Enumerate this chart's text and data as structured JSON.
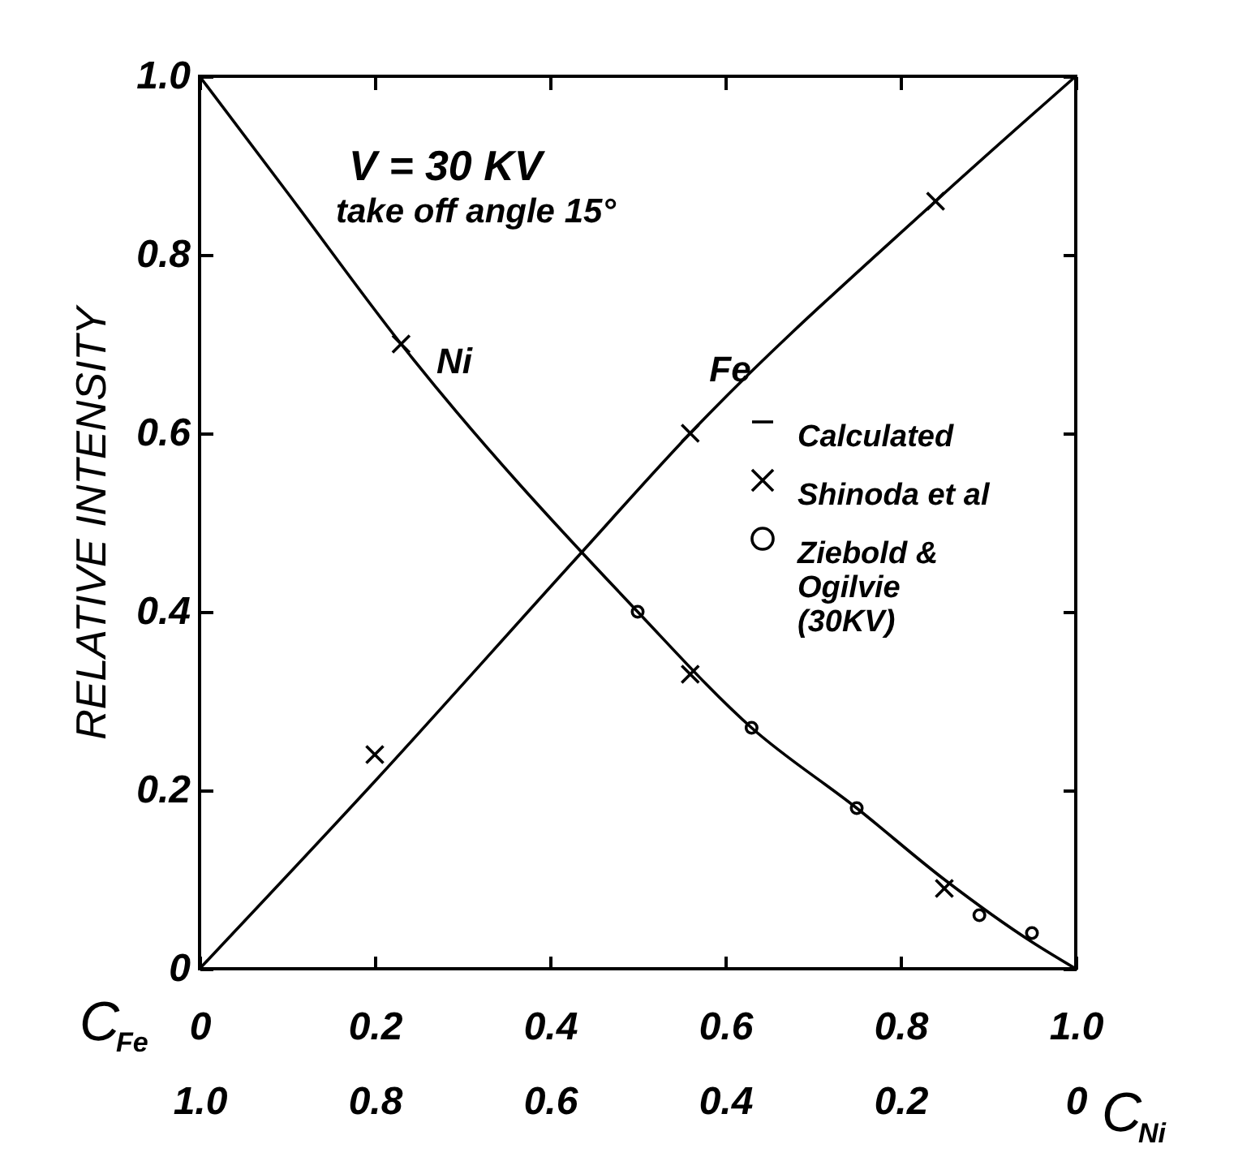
{
  "chart_data": {
    "type": "line",
    "ylabel": "RELATIVE INTENSITY",
    "xlabel": "C$_{Fe}$",
    "x2label": "C$_{Ni}$",
    "xlim": [
      0,
      1
    ],
    "xticks": [
      0,
      0.2,
      0.4,
      0.6,
      0.8,
      {
        "value": 1,
        "label": "1.0"
      }
    ],
    "x2lim": [
      1,
      0
    ],
    "x2ticks": [
      {
        "value": 1,
        "label": "1.0"
      },
      0.8,
      0.6,
      0.4,
      0.2,
      0
    ],
    "ylim": [
      0,
      1
    ],
    "yticks": [
      0,
      0.2,
      0.4,
      0.6,
      0.8,
      {
        "value": 1,
        "label": "1.0"
      }
    ],
    "grid": false,
    "legend": "right",
    "annotations": [
      "V = 30 KV",
      "take off angle 15°",
      "Ni",
      "Fe"
    ],
    "series": [
      {
        "name": "Calculated",
        "color": "#000000",
        "x": [
          0,
          0.1,
          0.23,
          0.5,
          0.63,
          0.75,
          0.85,
          0.95,
          1
        ],
        "values": [
          1,
          0.87,
          0.7,
          0.4,
          0.27,
          0.18,
          0.1,
          0.03,
          0
        ]
      },
      {
        "color": "#000000",
        "x": [
          0,
          0.2,
          0.43,
          0.56,
          0.84,
          1
        ],
        "values": [
          0,
          0.21,
          0.46,
          0.6,
          0.86,
          1
        ]
      },
      {
        "name": "Shinoda et al",
        "type": "scatter",
        "marker": "cross",
        "color": "#000000",
        "x": [
          0.2,
          0.23,
          0.56,
          0.56,
          0.84,
          0.85
        ],
        "values": [
          0.24,
          0.7,
          0.6,
          0.33,
          0.86,
          0.09
        ]
      },
      {
        "name": "Ziebold & Ogilvie (30KV)",
        "type": "scatter",
        "marker": "circle",
        "color": "#000000",
        "x": [
          0.5,
          0.63,
          0.75,
          0.89,
          0.95
        ],
        "values": [
          0.4,
          0.27,
          0.18,
          0.06,
          0.04
        ]
      }
    ]
  }
}
